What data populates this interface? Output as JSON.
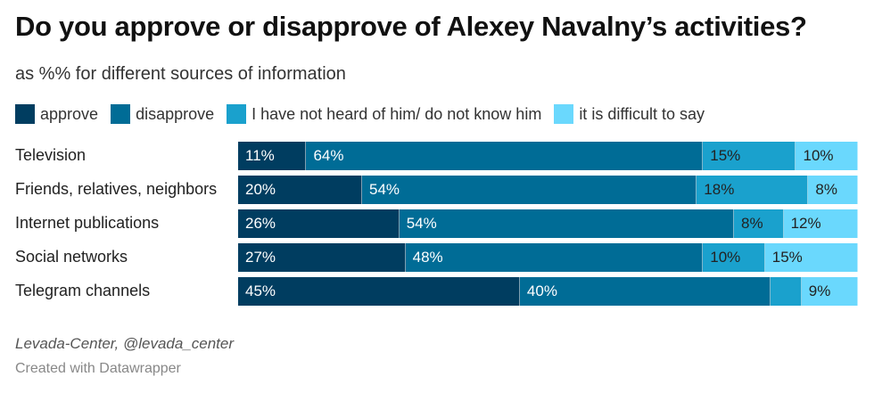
{
  "chart_data": {
    "type": "bar",
    "orientation": "horizontal",
    "stacked": true,
    "title": "Do you approve or disapprove of Alexey Navalny’s activities?",
    "subtitle": "as %% for different sources of information",
    "categories": [
      "Television",
      "Friends, relatives, neighbors",
      "Internet publications",
      "Social networks",
      "Telegram channels"
    ],
    "series": [
      {
        "name": "approve",
        "color": "#003d60",
        "text_color": "#ffffff",
        "values": [
          11,
          20,
          26,
          27,
          45
        ],
        "labels": [
          "11%",
          "20%",
          "26%",
          "27%",
          "45%"
        ]
      },
      {
        "name": "disapprove",
        "color": "#006c96",
        "text_color": "#ffffff",
        "values": [
          64,
          54,
          54,
          48,
          40
        ],
        "labels": [
          "64%",
          "54%",
          "54%",
          "48%",
          "40%"
        ]
      },
      {
        "name": "I have not heard of him/ do not know him",
        "color": "#1aa1cd",
        "text_color": "#222222",
        "values": [
          15,
          18,
          8,
          10,
          5
        ],
        "labels": [
          "15%",
          "18%",
          "8%",
          "10%",
          ""
        ]
      },
      {
        "name": "it is difficult to say",
        "color": "#6ad8fd",
        "text_color": "#222222",
        "values": [
          10,
          8,
          12,
          15,
          9
        ],
        "labels": [
          "10%",
          "8%",
          "12%",
          "15%",
          "9%"
        ]
      }
    ],
    "legend_position": "top-left",
    "grid": false
  },
  "footer": {
    "source": "Levada-Center, @levada_center",
    "credit": "Created with Datawrapper"
  }
}
